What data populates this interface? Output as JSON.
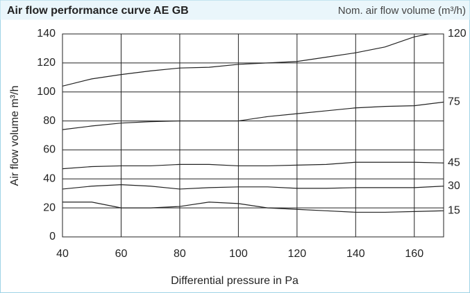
{
  "chart_data": {
    "type": "line",
    "title": "Air flow performance curve AE GB",
    "subtitle": "Nom. air flow volume (m³/h)",
    "ylabel": "Air flow volume m³/h",
    "xlabel": "Differential pressure in Pa",
    "x": [
      40,
      50,
      60,
      70,
      80,
      90,
      100,
      110,
      120,
      130,
      140,
      150,
      160,
      170
    ],
    "series": [
      {
        "name": "15",
        "color": "#222222",
        "values": [
          24,
          24,
          20,
          20,
          21,
          24,
          23,
          20,
          19,
          18,
          17,
          17,
          17.5,
          18
        ]
      },
      {
        "name": "30",
        "color": "#222222",
        "values": [
          33,
          35,
          36,
          35,
          33,
          34,
          34.5,
          34.5,
          33.5,
          33.5,
          34,
          34,
          34,
          35
        ]
      },
      {
        "name": "45",
        "color": "#222222",
        "values": [
          47,
          48.5,
          49,
          49,
          50,
          50,
          49,
          49,
          49.5,
          50,
          51.5,
          51.5,
          51.5,
          51
        ]
      },
      {
        "name": "75",
        "color": "#222222",
        "values": [
          74,
          76.5,
          78.5,
          79.5,
          80,
          80,
          80,
          83,
          85,
          87,
          89,
          90,
          90.5,
          93
        ]
      },
      {
        "name": "120",
        "color": "#222222",
        "values": [
          104,
          109,
          112,
          114.5,
          116.5,
          117,
          119,
          120,
          121,
          124,
          127,
          131,
          138,
          142
        ]
      }
    ],
    "xlim": [
      40,
      170
    ],
    "xticks": [
      40,
      60,
      80,
      100,
      120,
      140,
      160
    ],
    "ylim": [
      0,
      140
    ],
    "yticks": [
      0,
      20,
      40,
      60,
      80,
      100,
      120,
      140
    ],
    "grid": true
  }
}
